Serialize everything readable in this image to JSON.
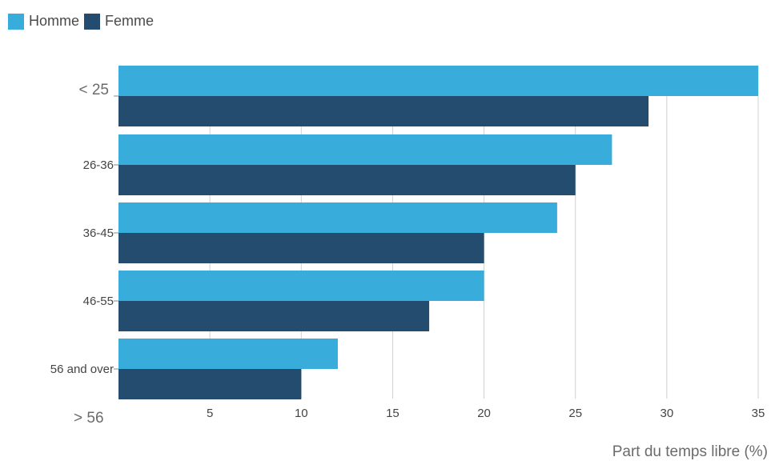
{
  "chart_data": {
    "type": "bar",
    "orientation": "horizontal",
    "categories": [
      "< 25",
      "26-36",
      "36-45",
      "46-55",
      "56 and over"
    ],
    "extra_category_labels": [
      "> 56"
    ],
    "series": [
      {
        "name": "Homme",
        "values": [
          35,
          27,
          24,
          20,
          12
        ]
      },
      {
        "name": "Femme",
        "values": [
          29,
          25,
          20,
          17,
          10
        ]
      }
    ],
    "x_ticks": [
      5,
      10,
      15,
      20,
      25,
      30,
      35
    ],
    "xlim": [
      0,
      35
    ],
    "xlabel": "Part du temps libre (%)",
    "grid": "vertical",
    "legend_position": "top-left",
    "colors": {
      "Homme": "#38acda",
      "Femme": "#234c6e",
      "grid": "#d0d0d0",
      "tick_text": "#444444"
    }
  }
}
